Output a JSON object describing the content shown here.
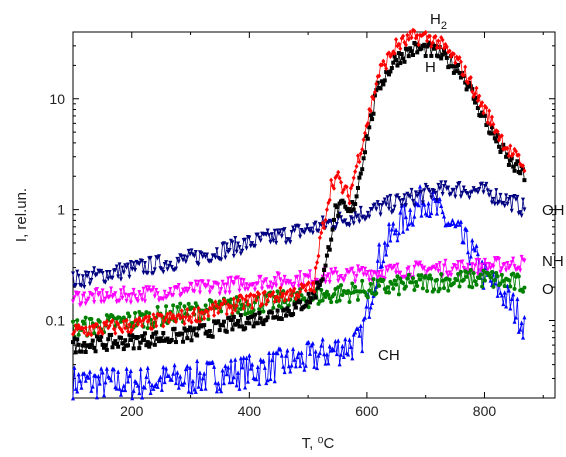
{
  "chart_data": {
    "type": "scatter",
    "title": "",
    "xlabel": "T, ⁰C",
    "ylabel": "I, rel.un.",
    "xlim": [
      100,
      920
    ],
    "ylim": [
      0.02,
      40
    ],
    "yscale": "log",
    "xticks": [
      200,
      400,
      600,
      800
    ],
    "yticks": [
      0.1,
      1,
      10
    ],
    "ytick_labels": [
      "0.1",
      "1",
      "10"
    ],
    "grid": false,
    "series": [
      {
        "name": "H2",
        "label": "H",
        "label_sub": "2",
        "color": "#ff0000",
        "marker": "diamond",
        "x": [
          100,
          200,
          300,
          400,
          480,
          510,
          520,
          540,
          550,
          560,
          570,
          580,
          600,
          620,
          650,
          680,
          700,
          720,
          760,
          800,
          840,
          870
        ],
        "y": [
          0.08,
          0.09,
          0.11,
          0.15,
          0.18,
          0.2,
          0.5,
          1.75,
          1.95,
          1.5,
          1.3,
          2.2,
          6.0,
          17,
          30,
          36,
          36,
          33,
          20,
          8,
          3.5,
          2.4
        ]
      },
      {
        "name": "H",
        "label": "H",
        "color": "#000000",
        "marker": "square",
        "x": [
          100,
          200,
          300,
          400,
          480,
          510,
          530,
          545,
          560,
          570,
          580,
          600,
          620,
          650,
          680,
          700,
          720,
          760,
          800,
          840,
          870
        ],
        "y": [
          0.06,
          0.065,
          0.075,
          0.1,
          0.13,
          0.17,
          0.3,
          0.95,
          1.05,
          0.9,
          1.2,
          4.5,
          13,
          23,
          28,
          28,
          26,
          18,
          6.5,
          2.8,
          2.0
        ]
      },
      {
        "name": "OH",
        "label": "OH",
        "color": "#000080",
        "marker": "triangle-down",
        "x": [
          100,
          200,
          300,
          400,
          500,
          600,
          700,
          750,
          800,
          850,
          870
        ],
        "y": [
          0.23,
          0.29,
          0.36,
          0.5,
          0.66,
          0.95,
          1.4,
          1.55,
          1.45,
          1.15,
          1.0
        ]
      },
      {
        "name": "NH",
        "label": "NH",
        "color": "#ff00ff",
        "marker": "triangle-down",
        "x": [
          100,
          200,
          300,
          400,
          500,
          600,
          700,
          800,
          870
        ],
        "y": [
          0.16,
          0.17,
          0.19,
          0.22,
          0.24,
          0.27,
          0.29,
          0.31,
          0.33
        ]
      },
      {
        "name": "O",
        "label": "O",
        "color": "#008000",
        "marker": "circle",
        "x": [
          100,
          200,
          300,
          400,
          500,
          600,
          700,
          800,
          870
        ],
        "y": [
          0.085,
          0.1,
          0.12,
          0.14,
          0.16,
          0.19,
          0.22,
          0.24,
          0.21
        ]
      },
      {
        "name": "CH",
        "label": "CH",
        "color": "#0000ff",
        "marker": "triangle-up",
        "x": [
          100,
          200,
          300,
          400,
          500,
          550,
          590,
          600,
          620,
          650,
          680,
          700,
          720,
          750,
          780,
          800,
          830,
          850,
          870
        ],
        "y": [
          0.028,
          0.027,
          0.03,
          0.035,
          0.045,
          0.055,
          0.065,
          0.12,
          0.35,
          0.7,
          1.0,
          1.3,
          0.95,
          0.65,
          0.4,
          0.25,
          0.18,
          0.13,
          0.09
        ]
      }
    ]
  }
}
